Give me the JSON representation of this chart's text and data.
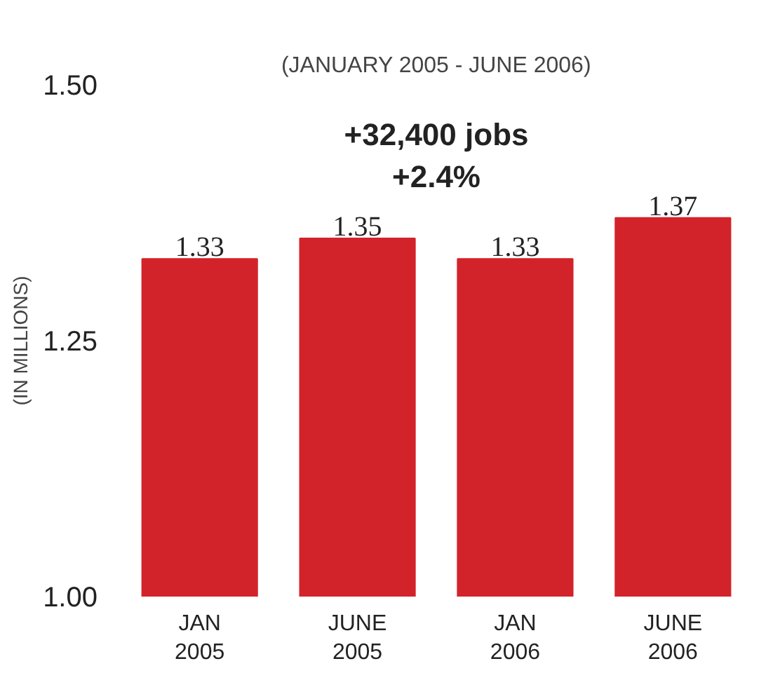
{
  "chart_data": {
    "type": "bar",
    "subtitle": "(JANUARY 2005 - JUNE 2006)",
    "ylabel": "(IN MILLIONS)",
    "categories": [
      "JAN\n2005",
      "JUNE\n2005",
      "JAN\n2006",
      "JUNE\n2006"
    ],
    "values": [
      1.33,
      1.35,
      1.33,
      1.37
    ],
    "color": "#d3232a",
    "ylim": [
      1.0,
      1.5
    ],
    "yticks": [
      {
        "value": 1.0,
        "label": "1.00"
      },
      {
        "value": 1.25,
        "label": "1.25"
      },
      {
        "value": 1.5,
        "label": "1.50"
      }
    ],
    "data_labels": true,
    "grid": false,
    "annotations": [
      "+32,400 jobs\n+2.4%"
    ]
  }
}
